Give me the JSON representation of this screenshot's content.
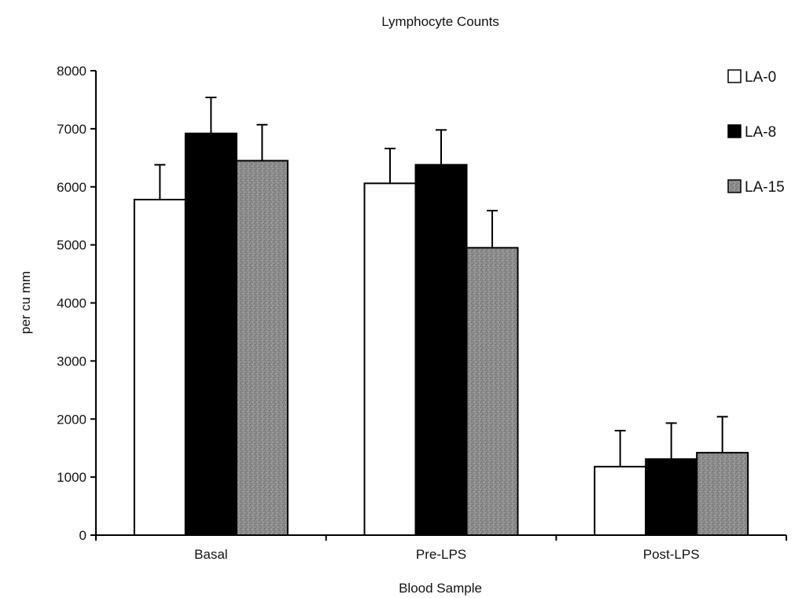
{
  "chart_data": {
    "type": "bar",
    "title": "Lymphocyte Counts",
    "xlabel": "Blood Sample",
    "ylabel": "per cu mm",
    "ylim": [
      0,
      8000
    ],
    "yticks": [
      0,
      1000,
      2000,
      3000,
      4000,
      5000,
      6000,
      7000,
      8000
    ],
    "categories": [
      "Basal",
      "Pre-LPS",
      "Post-LPS"
    ],
    "series": [
      {
        "name": "LA-0",
        "values": [
          5780,
          6060,
          1180
        ],
        "errors": [
          600,
          600,
          620
        ],
        "fill": "#ffffff",
        "pattern": "none"
      },
      {
        "name": "LA-8",
        "values": [
          6920,
          6380,
          1310
        ],
        "errors": [
          620,
          600,
          620
        ],
        "fill": "#000000",
        "pattern": "none"
      },
      {
        "name": "LA-15",
        "values": [
          6450,
          4950,
          1420
        ],
        "errors": [
          620,
          640,
          620
        ],
        "fill": "#8a8a8a",
        "pattern": "speckle"
      }
    ],
    "legend_position": "top-right",
    "grid": false
  },
  "colors": {
    "axis": "#000000",
    "background": "#ffffff"
  }
}
